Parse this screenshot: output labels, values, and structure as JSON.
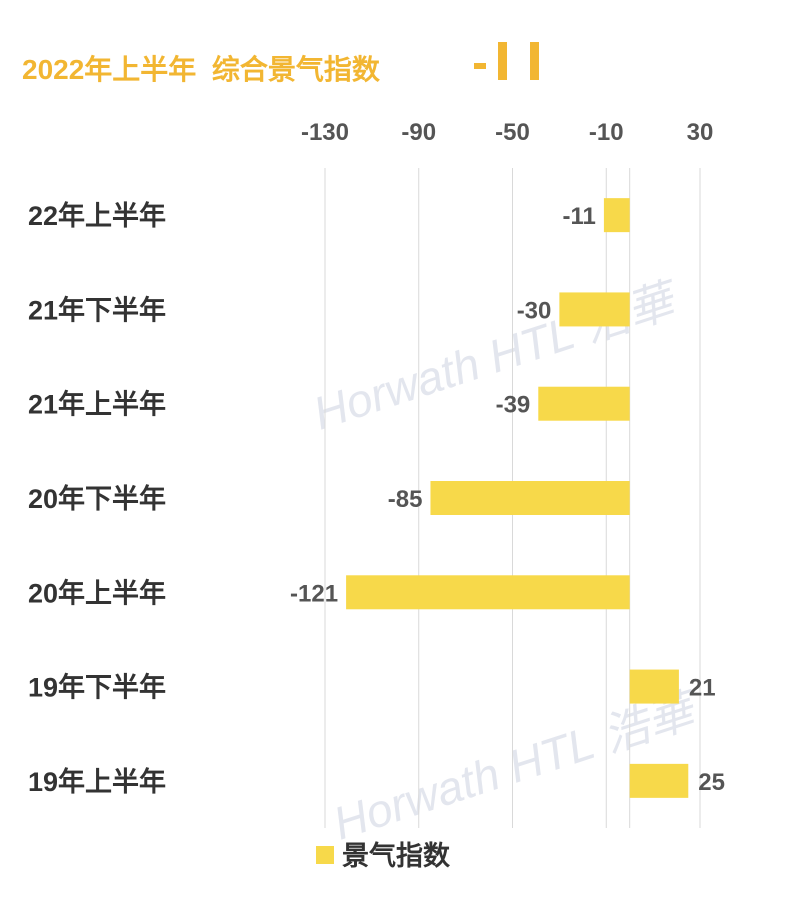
{
  "chart_data": {
    "type": "bar",
    "orientation": "horizontal",
    "title": "2022年上半年  综合景气指数",
    "categories": [
      "22年上半年",
      "21年下半年",
      "21年上半年",
      "20年下半年",
      "20年上半年",
      "19年下半年",
      "19年上半年"
    ],
    "series": [
      {
        "name": "景气指数",
        "values": [
          -11,
          -30,
          -39,
          -85,
          -121,
          21,
          25
        ]
      }
    ],
    "xticks": [
      -130,
      -90,
      -50,
      -10,
      30
    ],
    "xlim": [
      -143,
      36
    ],
    "grid": true,
    "legend": "bottom",
    "bar_color": "#f7d94a",
    "title_color": "#f2b632",
    "watermark": "Horwath HTL 浩華"
  }
}
